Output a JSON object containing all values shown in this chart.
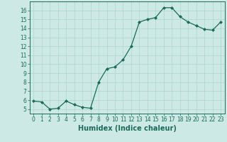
{
  "x": [
    0,
    1,
    2,
    3,
    4,
    5,
    6,
    7,
    8,
    9,
    10,
    11,
    12,
    13,
    14,
    15,
    16,
    17,
    18,
    19,
    20,
    21,
    22,
    23
  ],
  "y": [
    5.9,
    5.8,
    5.0,
    5.1,
    5.9,
    5.5,
    5.2,
    5.1,
    8.0,
    9.5,
    9.7,
    10.5,
    12.0,
    14.7,
    15.0,
    15.2,
    16.3,
    16.3,
    15.3,
    14.7,
    14.3,
    13.9,
    13.8,
    14.7
  ],
  "line_color": "#1a6b5a",
  "marker": "D",
  "marker_size": 2.0,
  "bg_color": "#cce9e5",
  "grid_color": "#afd4cf",
  "xlabel": "Humidex (Indice chaleur)",
  "xlim": [
    -0.5,
    23.5
  ],
  "ylim": [
    4.5,
    17.0
  ],
  "yticks": [
    5,
    6,
    7,
    8,
    9,
    10,
    11,
    12,
    13,
    14,
    15,
    16
  ],
  "xticks": [
    0,
    1,
    2,
    3,
    4,
    5,
    6,
    7,
    8,
    9,
    10,
    11,
    12,
    13,
    14,
    15,
    16,
    17,
    18,
    19,
    20,
    21,
    22,
    23
  ],
  "tick_label_fontsize": 5.5,
  "xlabel_fontsize": 7.0,
  "axis_color": "#1a6b5a",
  "linewidth": 0.9
}
